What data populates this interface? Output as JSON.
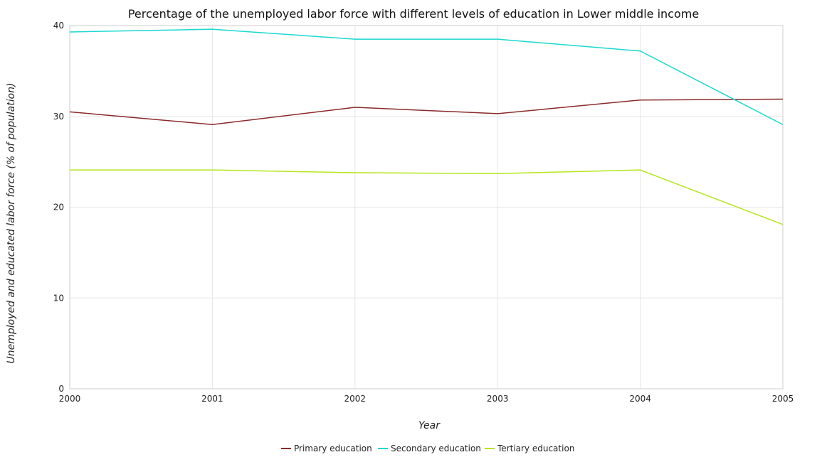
{
  "chart_data": {
    "type": "line",
    "title": "Percentage of the unemployed labor force with different levels of education in Lower middle income",
    "xlabel": "Year",
    "ylabel": "Unemployed and educated labor force (% of population)",
    "categories": [
      "2000",
      "2001",
      "2002",
      "2003",
      "2004",
      "2005"
    ],
    "ylim": [
      0,
      40
    ],
    "yticks": [
      0,
      10,
      20,
      30,
      40
    ],
    "grid": true,
    "legend_position": "bottom-center",
    "series": [
      {
        "name": "Primary education",
        "color": "#8b2a2a",
        "values": [
          30.5,
          29.1,
          31.0,
          30.3,
          31.8,
          31.9
        ]
      },
      {
        "name": "Secondary education",
        "color": "#1ad8d0",
        "values": [
          39.3,
          39.6,
          38.5,
          38.5,
          37.2,
          29.1
        ]
      },
      {
        "name": "Tertiary education",
        "color": "#b5e61d",
        "values": [
          24.1,
          24.1,
          23.8,
          23.7,
          24.1,
          18.1
        ]
      }
    ]
  }
}
